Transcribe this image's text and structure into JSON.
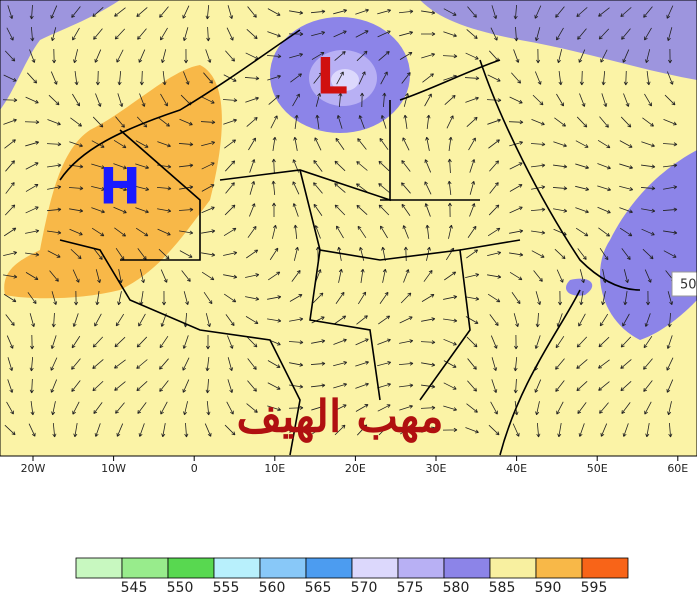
{
  "map": {
    "high_label": "H",
    "low_label": "L",
    "annotation": "مهب الهيف",
    "edge_label": "50",
    "lon_labels": [
      "20W",
      "10W",
      "0",
      "10E",
      "20E",
      "30E",
      "40E",
      "50E",
      "60E"
    ],
    "colorbar": {
      "labels": [
        545,
        550,
        555,
        560,
        565,
        570,
        575,
        580,
        585,
        590,
        595
      ],
      "colors": [
        "#c8f8c0",
        "#98ec8c",
        "#58d850",
        "#b8f0fc",
        "#88c8f8",
        "#4c9cf0",
        "#dcd8fc",
        "#b8b0f4",
        "#8c84e8",
        "#f8f0a0",
        "#f8b848",
        "#f86418"
      ]
    }
  }
}
